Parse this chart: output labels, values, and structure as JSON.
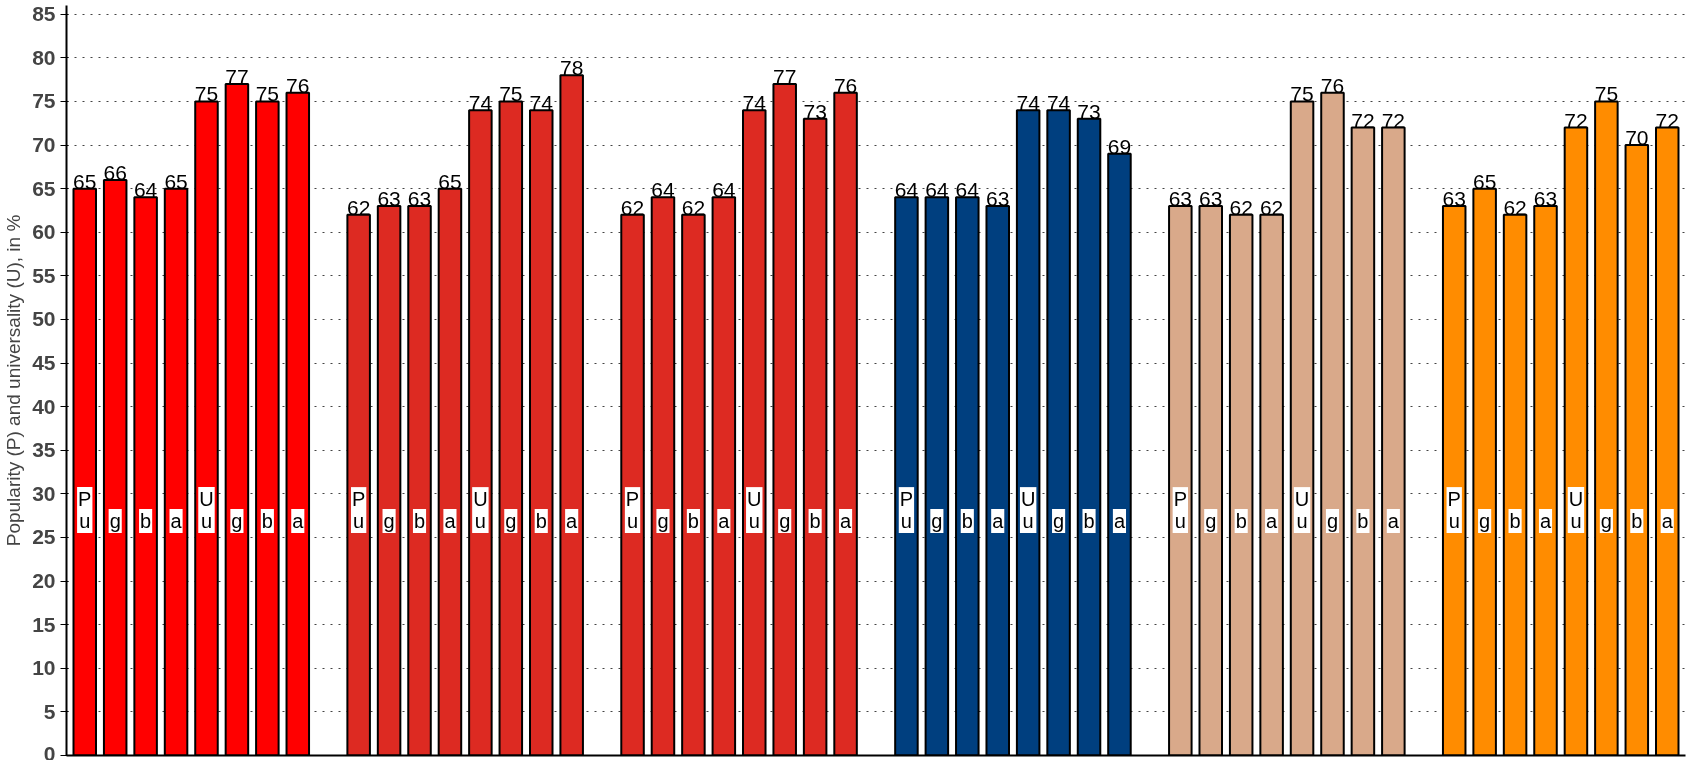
{
  "chart_data": {
    "type": "bar",
    "ylabel": "Popularity (P) and universality (U), in %",
    "categories": [
      "P\nu",
      "g",
      "b",
      "a",
      "U\nu",
      "g",
      "b",
      "a",
      null,
      "P\nu",
      "g",
      "b",
      "a",
      "U\nu",
      "g",
      "b",
      "a",
      null,
      "P\nu",
      "g",
      "b",
      "a",
      "U\nu",
      "g",
      "b",
      "a",
      null,
      "P\nu",
      "g",
      "b",
      "a",
      "U\nu",
      "g",
      "b",
      "a",
      null,
      "P\nu",
      "g",
      "b",
      "a",
      "U\nu",
      "g",
      "b",
      "a",
      null,
      "P\nu",
      "g",
      "b",
      "a",
      "U\nu",
      "g",
      "b",
      "a"
    ],
    "values": [
      65,
      66,
      64,
      65,
      75,
      77,
      75,
      76,
      null,
      62,
      63,
      63,
      65,
      74,
      75,
      74,
      78,
      null,
      62,
      64,
      62,
      64,
      74,
      77,
      73,
      76,
      null,
      64,
      64,
      64,
      63,
      74,
      74,
      73,
      69,
      null,
      63,
      63,
      62,
      62,
      75,
      76,
      72,
      72,
      null,
      63,
      65,
      62,
      63,
      72,
      75,
      70,
      72
    ],
    "colors": [
      "#ff0000",
      "#ff0000",
      "#ff0000",
      "#ff0000",
      "#ff0000",
      "#ff0000",
      "#ff0000",
      "#ff0000",
      null,
      "#dd2a22",
      "#dd2a22",
      "#dd2a22",
      "#dd2a22",
      "#dd2a22",
      "#dd2a22",
      "#dd2a22",
      "#dd2a22",
      null,
      "#dd2a22",
      "#dd2a22",
      "#dd2a22",
      "#dd2a22",
      "#dd2a22",
      "#dd2a22",
      "#dd2a22",
      "#dd2a22",
      null,
      "#003f7f",
      "#003f7f",
      "#003f7f",
      "#003f7f",
      "#003f7f",
      "#003f7f",
      "#003f7f",
      "#003f7f",
      null,
      "#d9a98a",
      "#d9a98a",
      "#d9a98a",
      "#d9a98a",
      "#d9a98a",
      "#d9a98a",
      "#d9a98a",
      "#d9a98a",
      null,
      "#ff8c00",
      "#ff8c00",
      "#ff8c00",
      "#ff8c00",
      "#ff8c00",
      "#ff8c00",
      "#ff8c00",
      "#ff8c00"
    ],
    "ylim": [
      0,
      86
    ],
    "yticks": [
      0,
      5,
      10,
      15,
      20,
      25,
      30,
      35,
      40,
      45,
      50,
      55,
      60,
      65,
      70,
      75,
      80,
      85
    ],
    "grid": "y",
    "data_labels": true
  }
}
